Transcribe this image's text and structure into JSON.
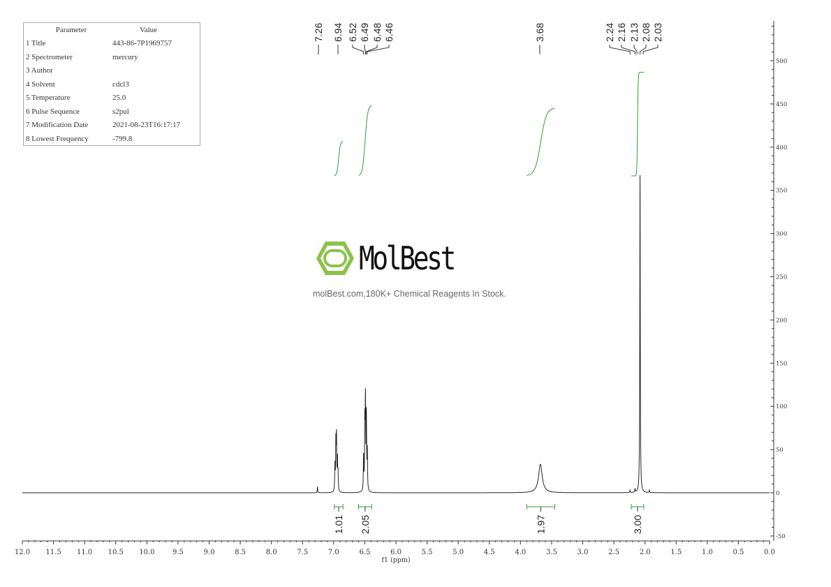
{
  "parameters": {
    "header": [
      "Parameter",
      "Value"
    ],
    "rows": [
      [
        "1 Title",
        "443-86-7P1969757"
      ],
      [
        "2 Spectrometer",
        "mercury"
      ],
      [
        "3 Author",
        ""
      ],
      [
        "4 Solvent",
        "cdcl3"
      ],
      [
        "5 Temperature",
        "25.0"
      ],
      [
        "6 Pulse Sequence",
        "s2pul"
      ],
      [
        "7 Modification Date",
        "2021-08-23T16:17:17"
      ],
      [
        "8 Lowest Frequency",
        "-799.8"
      ]
    ]
  },
  "watermark": {
    "logo_text": "MolBest",
    "tagline": "molBest.com,180K+ Chemical Reagents In Stock.",
    "logo_color": "#8bc34a"
  },
  "chart_data": {
    "type": "line",
    "xlabel": "f1 (ppm)",
    "xlim": [
      12.0,
      0.0
    ],
    "ylim": [
      -50,
      550
    ],
    "x_ticks": [
      "12.0",
      "11.5",
      "11.0",
      "10.5",
      "10.0",
      "9.5",
      "9.0",
      "8.5",
      "8.0",
      "7.5",
      "7.0",
      "6.5",
      "6.0",
      "5.5",
      "5.0",
      "4.5",
      "4.0",
      "3.5",
      "3.0",
      "2.5",
      "2.0",
      "1.5",
      "1.0",
      "0.5",
      "0.0"
    ],
    "y_ticks": [
      "-50",
      "0",
      "50",
      "100",
      "150",
      "200",
      "250",
      "300",
      "350",
      "400",
      "450",
      "500"
    ],
    "line_color": "#222222",
    "integral_color": "#2e9e2e",
    "peaks": [
      {
        "ppm": 7.26,
        "height": 7
      },
      {
        "ppm": 6.98,
        "height": 30
      },
      {
        "ppm": 6.965,
        "height": 55
      },
      {
        "ppm": 6.955,
        "height": 60
      },
      {
        "ppm": 6.94,
        "height": 35
      },
      {
        "ppm": 6.93,
        "height": 20
      },
      {
        "ppm": 6.52,
        "height": 40
      },
      {
        "ppm": 6.5,
        "height": 75
      },
      {
        "ppm": 6.49,
        "height": 100
      },
      {
        "ppm": 6.475,
        "height": 85
      },
      {
        "ppm": 6.46,
        "height": 45
      },
      {
        "ppm": 3.68,
        "height": 33
      },
      {
        "ppm": 2.24,
        "height": 3
      },
      {
        "ppm": 2.16,
        "height": 4
      },
      {
        "ppm": 2.08,
        "height": 372
      },
      {
        "ppm": 1.93,
        "height": 3
      }
    ],
    "peak_labels": [
      {
        "group": [
          "7.26"
        ]
      },
      {
        "group": [
          "6.94"
        ]
      },
      {
        "group": [
          "6.52",
          "6.49",
          "6.48",
          "6.46"
        ]
      },
      {
        "group": [
          "3.68"
        ]
      },
      {
        "group": [
          "2.24",
          "2.16",
          "2.13",
          "2.08",
          "2.03"
        ]
      }
    ],
    "integrals": [
      {
        "from": 6.99,
        "to": 6.85,
        "value": "1.01"
      },
      {
        "from": 6.6,
        "to": 6.39,
        "value": "2.05"
      },
      {
        "from": 3.9,
        "to": 3.45,
        "value": "1.97"
      },
      {
        "from": 2.22,
        "to": 2.02,
        "value": "3.00"
      }
    ]
  }
}
